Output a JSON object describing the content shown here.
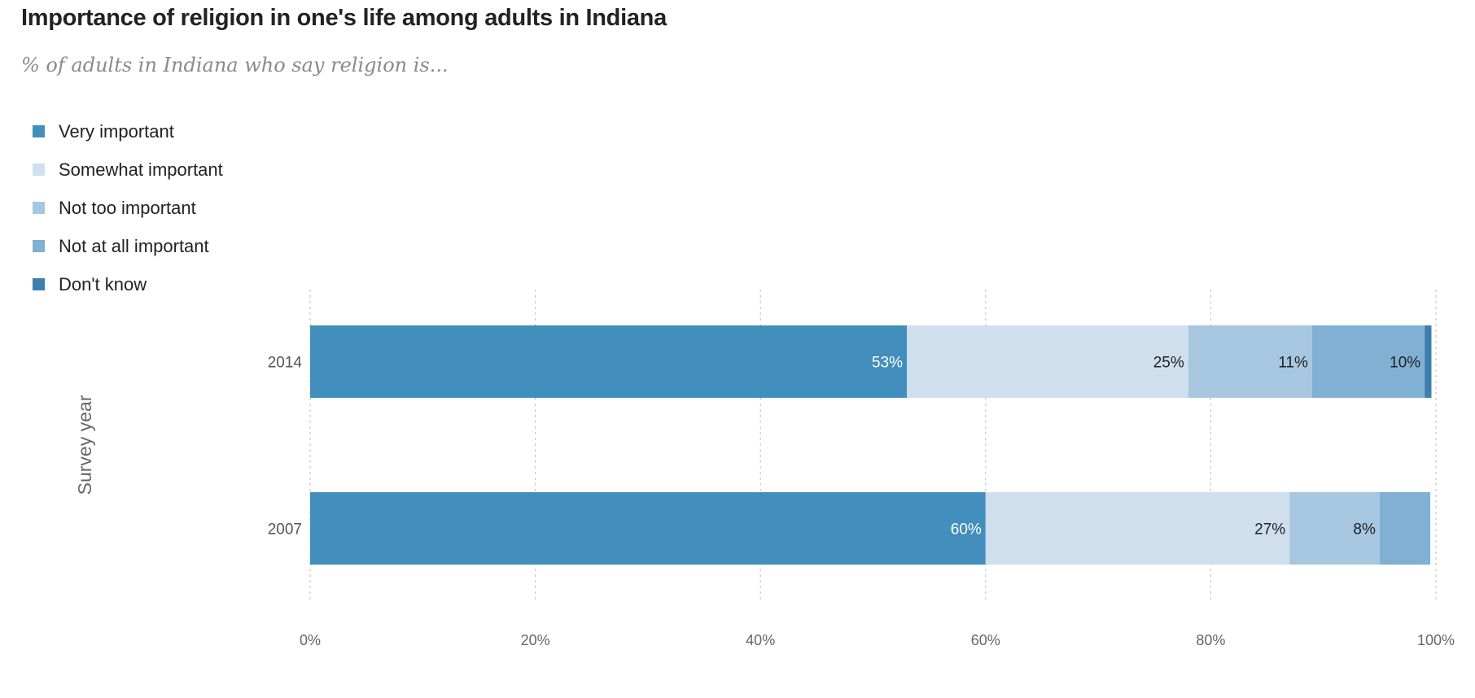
{
  "chart_data": {
    "type": "bar",
    "orientation": "horizontal",
    "stacked": true,
    "title": "Importance of religion in one's life among adults in Indiana",
    "subtitle": "% of adults in Indiana who say religion is...",
    "xlabel": "",
    "ylabel": "Survey year",
    "xlim": [
      0,
      100
    ],
    "x_ticks": [
      "0%",
      "20%",
      "40%",
      "60%",
      "80%",
      "100%"
    ],
    "x_tick_values": [
      0,
      20,
      40,
      60,
      80,
      100
    ],
    "grid": true,
    "legend_position": "top-left",
    "categories": [
      "2014",
      "2007"
    ],
    "series": [
      {
        "name": "Very important",
        "color": "#428fbd",
        "label_color": "#ffffff",
        "values": [
          53,
          60
        ],
        "labels": [
          "53%",
          "60%"
        ]
      },
      {
        "name": "Somewhat important",
        "color": "#cfdfed",
        "label_color": "#222222",
        "values": [
          25,
          27
        ],
        "labels": [
          "25%",
          "27%"
        ]
      },
      {
        "name": "Not too important",
        "color": "#a7c7e0",
        "label_color": "#222222",
        "values": [
          11,
          8
        ],
        "labels": [
          "11%",
          "8%"
        ]
      },
      {
        "name": "Not at all important",
        "color": "#80b0d4",
        "label_color": "#222222",
        "values": [
          10,
          4.5
        ],
        "labels": [
          "10%",
          ""
        ]
      },
      {
        "name": "Don't know",
        "color": "#3f7fad",
        "label_color": "#ffffff",
        "values": [
          0.6,
          0
        ],
        "labels": [
          "",
          ""
        ]
      }
    ]
  }
}
